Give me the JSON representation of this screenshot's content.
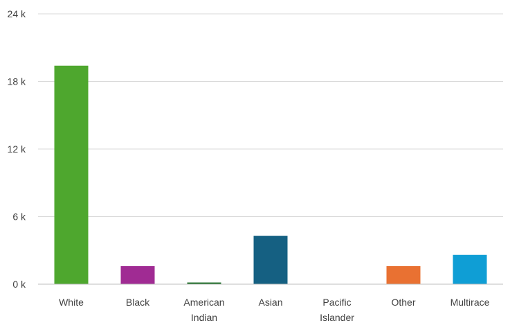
{
  "chart_data": {
    "type": "bar",
    "title": "",
    "xlabel": "",
    "ylabel": "",
    "categories": [
      "White",
      "Black",
      "American Indian",
      "Asian",
      "Pacific Islander",
      "Other",
      "Multirace"
    ],
    "category_lines": [
      [
        "White"
      ],
      [
        "Black"
      ],
      [
        "American",
        "Indian"
      ],
      [
        "Asian"
      ],
      [
        "Pacific",
        "Islander"
      ],
      [
        "Other"
      ],
      [
        "Multirace"
      ]
    ],
    "values": [
      19400,
      1600,
      150,
      4300,
      0,
      1600,
      2600
    ],
    "colors": [
      "#4ea72e",
      "#a02b93",
      "#196b24",
      "#156082",
      "#0f9ed5",
      "#e97132",
      "#0f9ed5"
    ],
    "ylim": [
      0,
      24000
    ],
    "yticks": [
      0,
      6000,
      12000,
      18000,
      24000
    ],
    "ytick_labels": [
      "0 k",
      "6 k",
      "12 k",
      "18 k",
      "24 k"
    ],
    "grid": true,
    "legend": "none"
  }
}
